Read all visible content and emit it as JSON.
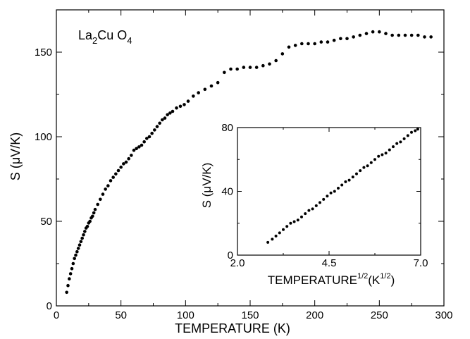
{
  "chart_data": [
    {
      "type": "scatter",
      "title": "",
      "annotation": {
        "main": "La",
        "sub1": "2",
        "mid": "Cu O",
        "sub2": "4"
      },
      "xlabel": "TEMPERATURE (K)",
      "ylabel": "S (μV/K)",
      "xlim": [
        0,
        300
      ],
      "ylim": [
        0,
        175
      ],
      "xticks": [
        0,
        50,
        100,
        150,
        200,
        250,
        300
      ],
      "yticks": [
        0,
        50,
        100,
        150
      ],
      "xtick_labels": [
        "0",
        "50",
        "100",
        "150",
        "200",
        "250",
        "300"
      ],
      "ytick_labels": [
        "0",
        "50",
        "100",
        "150"
      ],
      "grid": false,
      "series": [
        {
          "x": [
            8,
            9,
            10,
            11,
            12,
            13,
            14,
            15,
            16,
            17,
            18,
            19,
            20,
            21,
            22,
            23,
            24,
            25,
            26,
            27,
            28,
            29,
            30,
            32,
            34,
            36,
            38,
            40,
            42,
            44,
            46,
            48,
            50,
            52,
            54,
            56,
            58,
            60,
            62,
            64,
            66,
            68,
            70,
            72,
            74,
            76,
            78,
            80,
            82,
            84,
            86,
            88,
            90,
            93,
            96,
            99,
            102,
            106,
            110,
            115,
            120,
            125,
            130,
            135,
            140,
            145,
            150,
            155,
            160,
            165,
            170,
            175,
            180,
            185,
            190,
            195,
            200,
            205,
            210,
            215,
            220,
            225,
            230,
            235,
            240,
            245,
            250,
            255,
            260,
            265,
            270,
            275,
            280,
            285,
            290
          ],
          "y": [
            8,
            12,
            16,
            19,
            22,
            25,
            28,
            30,
            32,
            34,
            36,
            38,
            40,
            42,
            44,
            46,
            47,
            49,
            50,
            52,
            53,
            55,
            57,
            60,
            63,
            66,
            69,
            71,
            74,
            76,
            78,
            80,
            82,
            84,
            85,
            87,
            89,
            92,
            93,
            94,
            95,
            97,
            99,
            100,
            102,
            104,
            106,
            108,
            110,
            111,
            113,
            114,
            115,
            117,
            118,
            119,
            121,
            124,
            126,
            128,
            130,
            132,
            138,
            140,
            140,
            141,
            141,
            141,
            142,
            143,
            145,
            149,
            153,
            154,
            155,
            155,
            155,
            156,
            156,
            157,
            158,
            158,
            159,
            160,
            161,
            162,
            162,
            161,
            160,
            160,
            160,
            160,
            160,
            159,
            159
          ]
        }
      ]
    },
    {
      "type": "scatter",
      "title": "",
      "xlabel": "TEMPERATURE^(1/2) (K^(1/2))",
      "xlabel_parts": {
        "base": "TEMPERATURE",
        "sup1": "1/2",
        "mid": "(K",
        "sup2": "1/2",
        "end": ")"
      },
      "ylabel": "S (μV/K)",
      "xlim": [
        2.0,
        7.0
      ],
      "ylim": [
        0,
        80
      ],
      "xticks": [
        2.0,
        4.5,
        7.0
      ],
      "yticks": [
        0,
        40,
        80
      ],
      "xtick_labels": [
        "2.0",
        "4.5",
        "7.0"
      ],
      "ytick_labels": [
        "0",
        "40",
        "80"
      ],
      "grid": false,
      "series": [
        {
          "x": [
            2.83,
            2.95,
            3.05,
            3.15,
            3.25,
            3.35,
            3.45,
            3.55,
            3.65,
            3.75,
            3.85,
            3.95,
            4.05,
            4.15,
            4.25,
            4.35,
            4.45,
            4.55,
            4.65,
            4.75,
            4.85,
            4.95,
            5.05,
            5.15,
            5.25,
            5.35,
            5.45,
            5.55,
            5.65,
            5.75,
            5.85,
            5.95,
            6.05,
            6.15,
            6.25,
            6.35,
            6.45,
            6.55,
            6.65,
            6.75,
            6.85,
            6.92
          ],
          "y": [
            8,
            10,
            12,
            14,
            16,
            18,
            20,
            21,
            22,
            24,
            26,
            28,
            29,
            31,
            33,
            35,
            37,
            39,
            40,
            42,
            44,
            46,
            47,
            49,
            51,
            53,
            55,
            56,
            58,
            60,
            62,
            63,
            64,
            66,
            68,
            70,
            71,
            73,
            75,
            77,
            78,
            79
          ]
        }
      ]
    }
  ]
}
